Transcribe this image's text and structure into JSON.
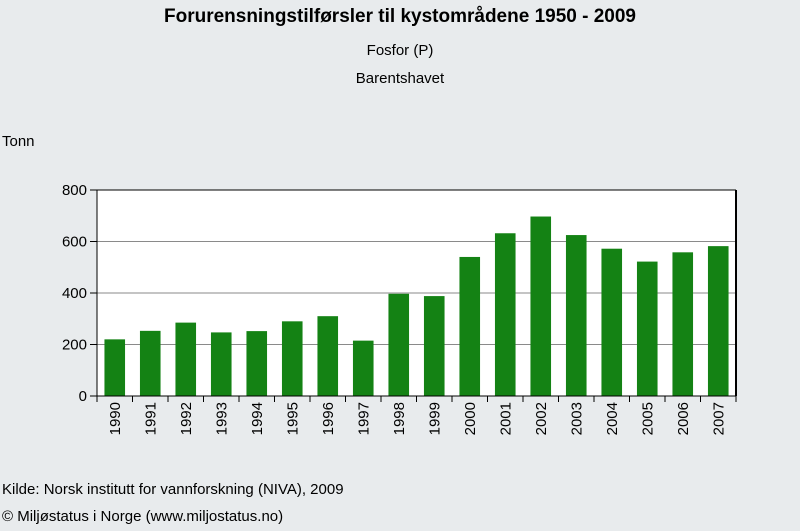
{
  "chart_data": {
    "type": "bar",
    "title": "Forurensningstilførsler til kystområdene 1950 - 2009",
    "subtitle": "Fosfor (P)",
    "subtitle2": "Barentshavet",
    "ylabel": "Tonn",
    "xlabel": "",
    "ylim": [
      0,
      800
    ],
    "yticks": [
      "0",
      "200",
      "400",
      "600",
      "800"
    ],
    "grid": true,
    "categories": [
      "1990",
      "1991",
      "1992",
      "1993",
      "1994",
      "1995",
      "1996",
      "1997",
      "1998",
      "1999",
      "2000",
      "2001",
      "2002",
      "2003",
      "2004",
      "2005",
      "2006",
      "2007"
    ],
    "values": [
      220,
      253,
      285,
      247,
      252,
      290,
      310,
      215,
      397,
      388,
      540,
      632,
      697,
      625,
      572,
      522,
      558,
      582
    ],
    "bar_color": "#148214",
    "plot_background": "#ffffff"
  },
  "footer": {
    "source": "Kilde: Norsk institutt for vannforskning (NIVA), 2009",
    "copyright": "© Miljøstatus i Norge (www.miljostatus.no)"
  }
}
